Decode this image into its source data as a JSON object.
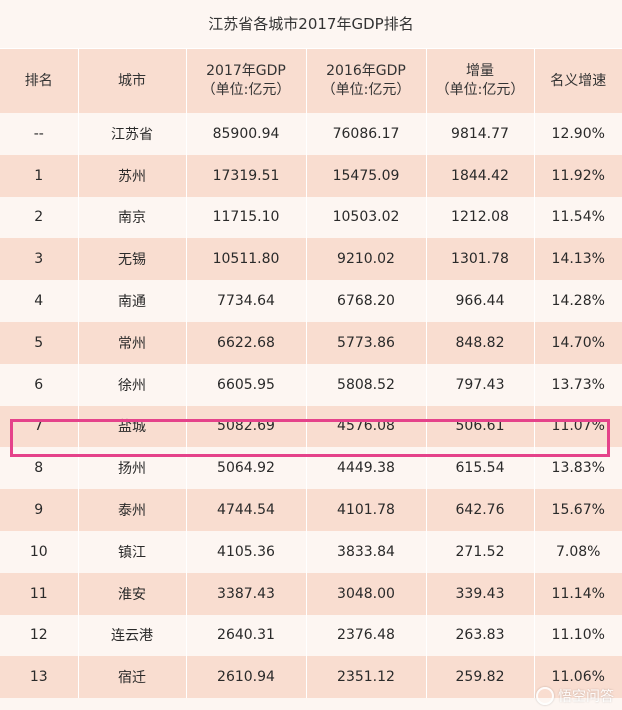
{
  "title": "江苏省各城市2017年GDP排名",
  "headers": [
    {
      "line1": "排名",
      "line2": ""
    },
    {
      "line1": "城市",
      "line2": ""
    },
    {
      "line1": "2017年GDP",
      "line2": "（单位:亿元）"
    },
    {
      "line1": "2016年GDP",
      "line2": "（单位:亿元）"
    },
    {
      "line1": "增量",
      "line2": "（单位:亿元）"
    },
    {
      "line1": "名义增速",
      "line2": ""
    }
  ],
  "rows": [
    [
      "--",
      "江苏省",
      "85900.94",
      "76086.17",
      "9814.77",
      "12.90%"
    ],
    [
      "1",
      "苏州",
      "17319.51",
      "15475.09",
      "1844.42",
      "11.92%"
    ],
    [
      "2",
      "南京",
      "11715.10",
      "10503.02",
      "1212.08",
      "11.54%"
    ],
    [
      "3",
      "无锡",
      "10511.80",
      "9210.02",
      "1301.78",
      "14.13%"
    ],
    [
      "4",
      "南通",
      "7734.64",
      "6768.20",
      "966.44",
      "14.28%"
    ],
    [
      "5",
      "常州",
      "6622.68",
      "5773.86",
      "848.82",
      "14.70%"
    ],
    [
      "6",
      "徐州",
      "6605.95",
      "5808.52",
      "797.43",
      "13.73%"
    ],
    [
      "7",
      "盐城",
      "5082.69",
      "4576.08",
      "506.61",
      "11.07%"
    ],
    [
      "8",
      "扬州",
      "5064.92",
      "4449.38",
      "615.54",
      "13.83%"
    ],
    [
      "9",
      "泰州",
      "4744.54",
      "4101.78",
      "642.76",
      "15.67%"
    ],
    [
      "10",
      "镇江",
      "4105.36",
      "3833.84",
      "271.52",
      "7.08%"
    ],
    [
      "11",
      "淮安",
      "3387.43",
      "3048.00",
      "339.43",
      "11.14%"
    ],
    [
      "12",
      "连云港",
      "2640.31",
      "2376.48",
      "263.83",
      "11.10%"
    ],
    [
      "13",
      "宿迁",
      "2610.94",
      "2351.12",
      "259.82",
      "11.06%"
    ]
  ],
  "highlight_row": 7,
  "watermark": "悟空问答",
  "colors": {
    "stripe": "#f9ddd0",
    "background": "#fdf6f2",
    "highlight": "#e5428a"
  }
}
